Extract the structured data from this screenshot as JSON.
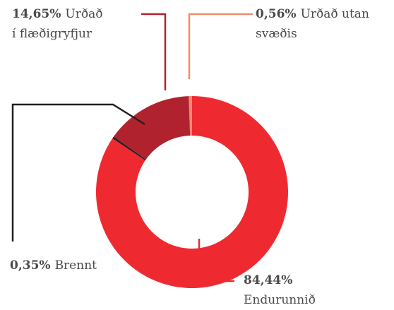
{
  "chart_data": {
    "type": "donut",
    "categories": [
      "Endurunnið",
      "Brennt",
      "Urðað í flæðigryfjur",
      "Urðað utan svæðis"
    ],
    "values": [
      84.44,
      0.35,
      14.65,
      0.56
    ],
    "value_labels": [
      "84,44%",
      "0,35%",
      "14,65%",
      "0,56%"
    ],
    "colors": [
      "#ee2a30",
      "#231f20",
      "#b0222e",
      "#f08b6f"
    ]
  }
}
